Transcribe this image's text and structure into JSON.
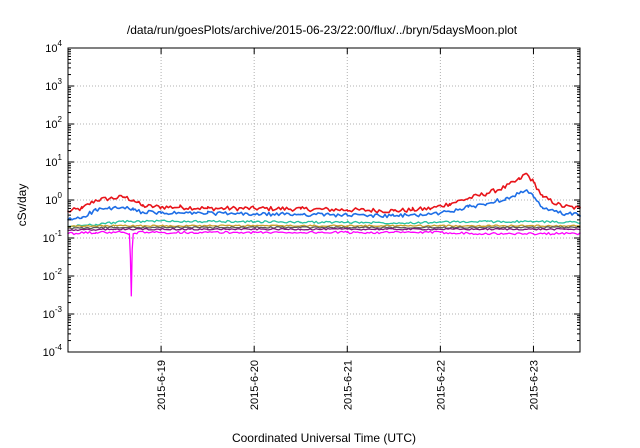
{
  "chart_data": {
    "type": "line",
    "title": "/data/run/goesPlots/archive/2015-06-23/22:00/flux/../bryn/5daysMoon.plot",
    "xlabel": "Coordinated Universal Time (UTC)",
    "ylabel": "cSv/day",
    "y_scale": "log",
    "ylim": [
      0.0001,
      10000
    ],
    "xlim": [
      0,
      5.5
    ],
    "y_ticks": [
      {
        "value": 0.0001,
        "base": "10",
        "exp": "-4"
      },
      {
        "value": 0.001,
        "base": "10",
        "exp": "-3"
      },
      {
        "value": 0.01,
        "base": "10",
        "exp": "-2"
      },
      {
        "value": 0.1,
        "base": "10",
        "exp": "-1"
      },
      {
        "value": 1,
        "base": "10",
        "exp": "0"
      },
      {
        "value": 10,
        "base": "10",
        "exp": "1"
      },
      {
        "value": 100,
        "base": "10",
        "exp": "2"
      },
      {
        "value": 1000,
        "base": "10",
        "exp": "3"
      },
      {
        "value": 10000,
        "base": "10",
        "exp": "4"
      }
    ],
    "x_ticks": [
      {
        "value": 1,
        "label": "2015-6-19"
      },
      {
        "value": 2,
        "label": "2015-6-20"
      },
      {
        "value": 3,
        "label": "2015-6-21"
      },
      {
        "value": 4,
        "label": "2015-6-22"
      },
      {
        "value": 5,
        "label": "2015-6-23"
      }
    ],
    "grid": true,
    "series": [
      {
        "color": "#e8141a",
        "x": [
          0,
          0.15,
          0.3,
          0.45,
          0.6,
          0.7,
          0.8,
          1.0,
          1.2,
          1.5,
          2.0,
          2.5,
          3.0,
          3.5,
          3.7,
          3.9,
          4.1,
          4.3,
          4.5,
          4.7,
          4.85,
          4.92,
          5.0,
          5.1,
          5.3,
          5.5
        ],
        "y": [
          0.5,
          0.6,
          1.0,
          1.1,
          1.2,
          1.0,
          0.7,
          0.65,
          0.65,
          0.6,
          0.6,
          0.58,
          0.55,
          0.52,
          0.55,
          0.6,
          0.8,
          1.1,
          1.5,
          2.2,
          3.5,
          5.0,
          3.0,
          1.2,
          0.7,
          0.6
        ]
      },
      {
        "color": "#1e6ee6",
        "x": [
          0,
          0.15,
          0.3,
          0.45,
          0.6,
          0.7,
          0.8,
          1.0,
          1.5,
          2.0,
          2.5,
          3.0,
          3.5,
          3.9,
          4.1,
          4.3,
          4.5,
          4.7,
          4.85,
          4.92,
          5.0,
          5.1,
          5.3,
          5.5
        ],
        "y": [
          0.3,
          0.35,
          0.55,
          0.6,
          0.62,
          0.55,
          0.48,
          0.45,
          0.45,
          0.42,
          0.42,
          0.4,
          0.38,
          0.42,
          0.5,
          0.65,
          0.8,
          1.1,
          1.5,
          1.8,
          1.2,
          0.6,
          0.45,
          0.4
        ]
      },
      {
        "color": "#25c2a0",
        "x": [
          0,
          0.3,
          0.6,
          1.0,
          1.5,
          2.0,
          2.5,
          3.0,
          3.5,
          4.0,
          4.5,
          5.0,
          5.5
        ],
        "y": [
          0.2,
          0.23,
          0.27,
          0.28,
          0.27,
          0.27,
          0.26,
          0.26,
          0.25,
          0.26,
          0.27,
          0.27,
          0.26
        ]
      },
      {
        "color": "#c8a02a",
        "x": [
          0,
          0.5,
          1.0,
          1.5,
          2.0,
          2.5,
          3.0,
          3.5,
          4.0,
          4.5,
          5.0,
          5.5
        ],
        "y": [
          0.2,
          0.21,
          0.21,
          0.21,
          0.21,
          0.21,
          0.21,
          0.21,
          0.21,
          0.21,
          0.21,
          0.21
        ]
      },
      {
        "color": "#5a5a5a",
        "x": [
          0,
          0.5,
          1.0,
          1.5,
          2.0,
          2.5,
          3.0,
          3.5,
          4.0,
          4.5,
          5.0,
          5.5
        ],
        "y": [
          0.18,
          0.19,
          0.19,
          0.19,
          0.19,
          0.19,
          0.19,
          0.19,
          0.19,
          0.19,
          0.19,
          0.19
        ]
      },
      {
        "color": "#7a1a7a",
        "x": [
          0,
          0.5,
          1.0,
          1.5,
          2.0,
          2.5,
          3.0,
          3.5,
          4.0,
          4.5,
          5.0,
          5.5
        ],
        "y": [
          0.16,
          0.17,
          0.17,
          0.17,
          0.17,
          0.17,
          0.17,
          0.17,
          0.17,
          0.17,
          0.17,
          0.17
        ]
      },
      {
        "color": "#ff00ff",
        "x": [
          0,
          0.3,
          0.6,
          0.66,
          0.67,
          0.68,
          0.69,
          0.7,
          0.75,
          1.0,
          1.5,
          2.0,
          2.5,
          3.0,
          3.5,
          4.0,
          4.5,
          5.0,
          5.5
        ],
        "y": [
          0.13,
          0.14,
          0.14,
          0.13,
          0.03,
          0.003,
          0.05,
          0.13,
          0.14,
          0.14,
          0.14,
          0.14,
          0.14,
          0.14,
          0.14,
          0.14,
          0.13,
          0.13,
          0.13
        ]
      }
    ]
  }
}
